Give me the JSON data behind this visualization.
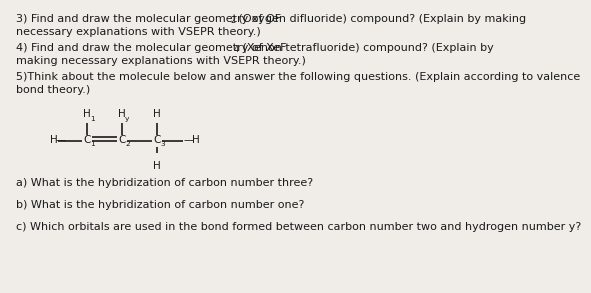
{
  "background_color": "#f0ede8",
  "text_color": "#1a1a1a",
  "font_size": 8.0,
  "mol_font_size": 7.5,
  "line3a": "3) Find and draw the molecular geometry of OF",
  "line3_sub": "2",
  "line3b": " (Oxygen difluoride) compound? (Explain by making",
  "line3c": "necessary explanations with VSEPR theory.)",
  "line4a": "4) Find and draw the molecular geometry of XeF",
  "line4_sub": "4",
  "line4b": " (Xenon tetrafluoride) compound? (Explain by",
  "line4c": "making necessary explanations with VSEPR theory.)",
  "line5a": "5)Think about the molecule below and answer the following questions. (Explain according to valence",
  "line5b": "bond theory.)",
  "qa": "a) What is the hybridization of carbon number three?",
  "qb": "b) What is the hybridization of carbon number one?",
  "qc": "c) Which orbitals are used in the bond formed between carbon number two and hydrogen number y?"
}
